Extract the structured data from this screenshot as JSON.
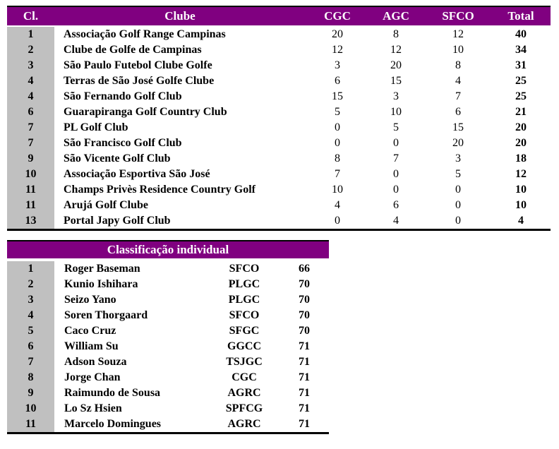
{
  "table": {
    "header": [
      "Cl.",
      "Clube",
      "CGC",
      "AGC",
      "SFCO",
      "Total"
    ],
    "rows": [
      [
        "1",
        "Associação Golf Range Campinas",
        20,
        8,
        12,
        40
      ],
      [
        "2",
        "Clube de Golfe de Campinas",
        12,
        12,
        10,
        34
      ],
      [
        "3",
        "São Paulo Futebol Clube Golfe",
        3,
        20,
        8,
        31
      ],
      [
        "4",
        "Terras de São José Golfe Clube",
        6,
        15,
        4,
        25
      ],
      [
        "4",
        "São Fernando Golf Club",
        15,
        3,
        7,
        25
      ],
      [
        "6",
        "Guarapiranga Golf Country Club",
        5,
        10,
        6,
        21
      ],
      [
        "7",
        "PL Golf Club",
        0,
        5,
        15,
        20
      ],
      [
        "7",
        "São Francisco Golf Club",
        0,
        0,
        20,
        20
      ],
      [
        "9",
        "São Vicente Golf Club",
        8,
        7,
        3,
        18
      ],
      [
        "10",
        "Associação Esportiva São José",
        7,
        0,
        5,
        12
      ],
      [
        "11",
        "Champs Privès Residence Country Golf",
        10,
        0,
        0,
        10
      ],
      [
        "11",
        "Arujá Golf Clube",
        4,
        6,
        0,
        10
      ],
      [
        "13",
        "Portal Japy Golf Club",
        0,
        4,
        0,
        4
      ]
    ]
  },
  "individual": {
    "title": "Classificação individual",
    "rows": [
      [
        "1",
        "Roger Baseman",
        "SFCO",
        66
      ],
      [
        "2",
        "Kunio Ishihara",
        "PLGC",
        70
      ],
      [
        "3",
        "Seizo Yano",
        "PLGC",
        70
      ],
      [
        "4",
        "Soren Thorgaard",
        "SFCO",
        70
      ],
      [
        "5",
        "Caco Cruz",
        "SFGC",
        70
      ],
      [
        "6",
        "William Su",
        "GGCC",
        71
      ],
      [
        "7",
        "Adson Souza",
        "TSJGC",
        71
      ],
      [
        "8",
        "Jorge Chan",
        "CGC",
        71
      ],
      [
        "9",
        "Raimundo de Sousa",
        "AGRC",
        71
      ],
      [
        "10",
        "Lo Sz Hsien",
        "SPFCG",
        71
      ],
      [
        "11",
        "Marcelo Domingues",
        "AGRC",
        71
      ]
    ]
  }
}
